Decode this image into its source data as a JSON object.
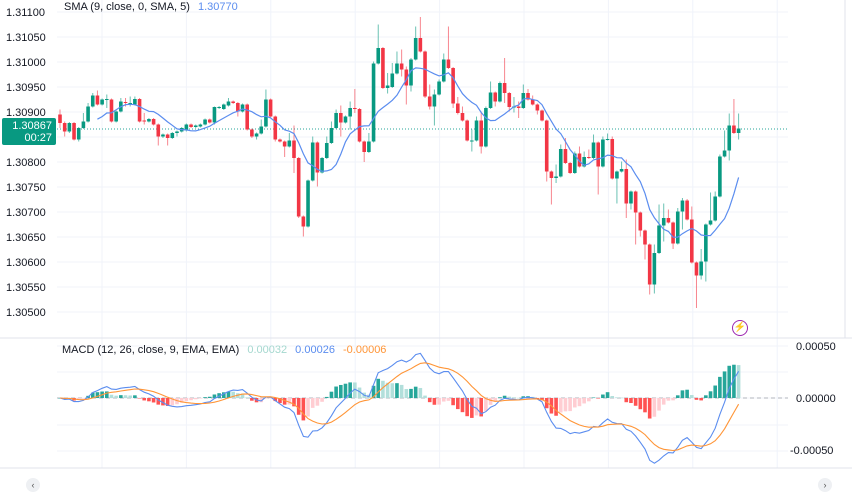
{
  "chart_data": [
    {
      "type": "candlestick",
      "price_axis": {
        "position": "left",
        "ticks": [
          "1.31100",
          "1.31050",
          "1.31000",
          "1.30950",
          "1.30900",
          "1.30800",
          "1.30750",
          "1.30700",
          "1.30650",
          "1.30600",
          "1.30550",
          "1.30500"
        ],
        "range": [
          1.305,
          1.311
        ]
      },
      "grid": true,
      "indicator": {
        "label": "SMA (9, close, 0, SMA, 5)",
        "value": "1.30770",
        "color": "#5b8def"
      },
      "last_price": {
        "value": "1.30867",
        "countdown": "00:27",
        "color": "#089981"
      },
      "colors": {
        "up": "#089981",
        "down": "#f23645"
      },
      "ohlc": [
        [
          1.30895,
          1.30905,
          1.30868,
          1.30878
        ],
        [
          1.30878,
          1.30881,
          1.30851,
          1.30861
        ],
        [
          1.30861,
          1.3088,
          1.30858,
          1.30878
        ],
        [
          1.30878,
          1.3088,
          1.30843,
          1.30845
        ],
        [
          1.30845,
          1.3087,
          1.30841,
          1.30868
        ],
        [
          1.30868,
          1.30898,
          1.30866,
          1.30881
        ],
        [
          1.30881,
          1.30918,
          1.30879,
          1.30911
        ],
        [
          1.30911,
          1.30938,
          1.30909,
          1.30933
        ],
        [
          1.30933,
          1.30943,
          1.30913,
          1.30915
        ],
        [
          1.30915,
          1.30927,
          1.30913,
          1.30925
        ],
        [
          1.30925,
          1.30935,
          1.30908,
          1.30926
        ],
        [
          1.30925,
          1.30927,
          1.30879,
          1.30881
        ],
        [
          1.30881,
          1.30903,
          1.30879,
          1.30901
        ],
        [
          1.30901,
          1.30928,
          1.30899,
          1.30921
        ],
        [
          1.3092,
          1.30928,
          1.30911,
          1.30918
        ],
        [
          1.30917,
          1.30931,
          1.30911,
          1.30918
        ],
        [
          1.30915,
          1.30931,
          1.30913,
          1.30926
        ],
        [
          1.30926,
          1.30928,
          1.30879,
          1.30881
        ],
        [
          1.30883,
          1.30898,
          1.30875,
          1.30881
        ],
        [
          1.30881,
          1.30888,
          1.30879,
          1.30886
        ],
        [
          1.30886,
          1.30888,
          1.30873,
          1.30875
        ],
        [
          1.30875,
          1.30877,
          1.30833,
          1.30851
        ],
        [
          1.30851,
          1.30857,
          1.30848,
          1.30855
        ],
        [
          1.30855,
          1.30857,
          1.30833,
          1.30848
        ],
        [
          1.30848,
          1.3086,
          1.30846,
          1.30858
        ],
        [
          1.30858,
          1.30863,
          1.30851,
          1.30861
        ],
        [
          1.30861,
          1.3087,
          1.30859,
          1.30868
        ],
        [
          1.30863,
          1.30877,
          1.30861,
          1.30875
        ],
        [
          1.30875,
          1.30877,
          1.30868,
          1.3087
        ],
        [
          1.3087,
          1.30875,
          1.30868,
          1.30873
        ],
        [
          1.30871,
          1.30877,
          1.30869,
          1.30875
        ],
        [
          1.30875,
          1.30887,
          1.30873,
          1.30885
        ],
        [
          1.30885,
          1.30887,
          1.30877,
          1.30879
        ],
        [
          1.30879,
          1.30911,
          1.30875,
          1.3091
        ],
        [
          1.30908,
          1.30912,
          1.30906,
          1.3091
        ],
        [
          1.30906,
          1.30917,
          1.30904,
          1.30915
        ],
        [
          1.30913,
          1.30928,
          1.30911,
          1.30921
        ],
        [
          1.30921,
          1.30923,
          1.30916,
          1.30918
        ],
        [
          1.30918,
          1.3092,
          1.30891,
          1.30901
        ],
        [
          1.30901,
          1.30917,
          1.30899,
          1.30915
        ],
        [
          1.30915,
          1.30917,
          1.30863,
          1.30865
        ],
        [
          1.30865,
          1.30867,
          1.30848,
          1.30851
        ],
        [
          1.30851,
          1.30859,
          1.30845,
          1.30857
        ],
        [
          1.30857,
          1.30885,
          1.30855,
          1.30871
        ],
        [
          1.30871,
          1.30945,
          1.30869,
          1.30925
        ],
        [
          1.30925,
          1.30927,
          1.30889,
          1.30891
        ],
        [
          1.30891,
          1.30893,
          1.30841,
          1.30845
        ],
        [
          1.30845,
          1.30847,
          1.30839,
          1.30841
        ],
        [
          1.30841,
          1.30843,
          1.3081,
          1.30831
        ],
        [
          1.30831,
          1.30858,
          1.30829,
          1.30843
        ],
        [
          1.30843,
          1.30873,
          1.30778,
          1.30808
        ],
        [
          1.30808,
          1.3081,
          1.30688,
          1.30691
        ],
        [
          1.30691,
          1.30693,
          1.30651,
          1.30671
        ],
        [
          1.30671,
          1.30765,
          1.30669,
          1.30763
        ],
        [
          1.30763,
          1.30851,
          1.30761,
          1.30839
        ],
        [
          1.30839,
          1.30841,
          1.30751,
          1.30779
        ],
        [
          1.30779,
          1.3081,
          1.30777,
          1.30808
        ],
        [
          1.30808,
          1.30851,
          1.30806,
          1.30838
        ],
        [
          1.30838,
          1.30881,
          1.30836,
          1.30868
        ],
        [
          1.30868,
          1.30905,
          1.30866,
          1.30898
        ],
        [
          1.30898,
          1.30913,
          1.30851,
          1.30879
        ],
        [
          1.30879,
          1.30893,
          1.30877,
          1.30891
        ],
        [
          1.30891,
          1.30921,
          1.30865,
          1.30908
        ],
        [
          1.30908,
          1.30946,
          1.30898,
          1.30906
        ],
        [
          1.30906,
          1.30908,
          1.30839,
          1.30841
        ],
        [
          1.30841,
          1.30843,
          1.308,
          1.3082
        ],
        [
          1.3082,
          1.30858,
          1.30818,
          1.30841
        ],
        [
          1.30841,
          1.31001,
          1.30839,
          1.30997
        ],
        [
          1.30997,
          1.31075,
          1.30995,
          1.31028
        ],
        [
          1.31028,
          1.3103,
          1.30946,
          1.30948
        ],
        [
          1.30948,
          1.30978,
          1.30937,
          1.30953
        ],
        [
          1.3095,
          1.30998,
          1.30948,
          1.30977
        ],
        [
          1.30977,
          1.31021,
          1.30975,
          1.30997
        ],
        [
          1.30997,
          1.31025,
          1.30971,
          1.30985
        ],
        [
          1.30985,
          1.30991,
          1.30915,
          1.30953
        ],
        [
          1.30953,
          1.31008,
          1.30941,
          1.31005
        ],
        [
          1.31005,
          1.31071,
          1.31003,
          1.31048
        ],
        [
          1.31048,
          1.3109,
          1.31019,
          1.31021
        ],
        [
          1.31021,
          1.31023,
          1.30928,
          1.30931
        ],
        [
          1.30931,
          1.30955,
          1.30905,
          1.30911
        ],
        [
          1.30911,
          1.30945,
          1.30873,
          1.30935
        ],
        [
          1.30935,
          1.30965,
          1.30933,
          1.30961
        ],
        [
          1.30961,
          1.31017,
          1.30959,
          1.31005
        ],
        [
          1.31005,
          1.31071,
          1.30986,
          1.30988
        ],
        [
          1.30988,
          1.3099,
          1.30908,
          1.30917
        ],
        [
          1.30917,
          1.3093,
          1.30895,
          1.30898
        ],
        [
          1.30898,
          1.30911,
          1.30881,
          1.30883
        ],
        [
          1.30883,
          1.30885,
          1.30841,
          1.30843
        ],
        [
          1.30841,
          1.30865,
          1.30821,
          1.30843
        ],
        [
          1.30843,
          1.30891,
          1.30841,
          1.30883
        ],
        [
          1.30883,
          1.30901,
          1.30817,
          1.30831
        ],
        [
          1.30831,
          1.30911,
          1.30829,
          1.30908
        ],
        [
          1.30908,
          1.30961,
          1.30906,
          1.30939
        ],
        [
          1.30939,
          1.30941,
          1.30911,
          1.30921
        ],
        [
          1.30921,
          1.30961,
          1.30919,
          1.30958
        ],
        [
          1.30958,
          1.31008,
          1.30918,
          1.30938
        ],
        [
          1.30938,
          1.3094,
          1.30901,
          1.3091
        ],
        [
          1.3091,
          1.3093,
          1.30899,
          1.30911
        ],
        [
          1.30911,
          1.30921,
          1.30888,
          1.30908
        ],
        [
          1.30908,
          1.30955,
          1.30906,
          1.30938
        ],
        [
          1.30938,
          1.30946,
          1.30923,
          1.30925
        ],
        [
          1.30925,
          1.30933,
          1.30913,
          1.30915
        ],
        [
          1.30915,
          1.30917,
          1.30895,
          1.30903
        ],
        [
          1.30903,
          1.30905,
          1.30881,
          1.30883
        ],
        [
          1.30883,
          1.30885,
          1.30761,
          1.30781
        ],
        [
          1.30781,
          1.30783,
          1.30715,
          1.30768
        ],
        [
          1.30768,
          1.30795,
          1.30758,
          1.30771
        ],
        [
          1.30771,
          1.30835,
          1.30769,
          1.30826
        ],
        [
          1.30826,
          1.30848,
          1.30796,
          1.30798
        ],
        [
          1.30798,
          1.308,
          1.30776,
          1.30778
        ],
        [
          1.30778,
          1.30821,
          1.30776,
          1.30817
        ],
        [
          1.30817,
          1.30831,
          1.30789,
          1.30791
        ],
        [
          1.30791,
          1.30821,
          1.30789,
          1.3081
        ],
        [
          1.3081,
          1.30825,
          1.30806,
          1.30808
        ],
        [
          1.30808,
          1.30855,
          1.30806,
          1.30839
        ],
        [
          1.30839,
          1.30841,
          1.30735,
          1.30791
        ],
        [
          1.30791,
          1.30851,
          1.30789,
          1.30845
        ],
        [
          1.30845,
          1.30857,
          1.30843,
          1.30846
        ],
        [
          1.30846,
          1.30851,
          1.30765,
          1.30767
        ],
        [
          1.30767,
          1.30783,
          1.30717,
          1.30781
        ],
        [
          1.30781,
          1.30801,
          1.30779,
          1.30786
        ],
        [
          1.30786,
          1.30805,
          1.30688,
          1.30717
        ],
        [
          1.30717,
          1.30743,
          1.30705,
          1.30741
        ],
        [
          1.30741,
          1.30743,
          1.30635,
          1.30699
        ],
        [
          1.30699,
          1.30701,
          1.30651,
          1.30663
        ],
        [
          1.30663,
          1.30665,
          1.30605,
          1.30635
        ],
        [
          1.30635,
          1.30637,
          1.30535,
          1.30555
        ],
        [
          1.30555,
          1.30635,
          1.30537,
          1.30618
        ],
        [
          1.30618,
          1.30715,
          1.30616,
          1.30673
        ],
        [
          1.30673,
          1.30717,
          1.30641,
          1.30688
        ],
        [
          1.30688,
          1.30705,
          1.30677,
          1.30679
        ],
        [
          1.30679,
          1.30681,
          1.30626,
          1.30637
        ],
        [
          1.30637,
          1.30708,
          1.30635,
          1.30701
        ],
        [
          1.30701,
          1.30728,
          1.30665,
          1.30723
        ],
        [
          1.30723,
          1.30726,
          1.30683,
          1.30685
        ],
        [
          1.30685,
          1.30711,
          1.30597,
          1.30599
        ],
        [
          1.30599,
          1.30601,
          1.30508,
          1.30573
        ],
        [
          1.30573,
          1.30626,
          1.30565,
          1.30601
        ],
        [
          1.30601,
          1.30677,
          1.30561,
          1.30675
        ],
        [
          1.30675,
          1.30739,
          1.30673,
          1.30683
        ],
        [
          1.30683,
          1.30741,
          1.30681,
          1.30731
        ],
        [
          1.30731,
          1.30815,
          1.30729,
          1.30811
        ],
        [
          1.30811,
          1.30863,
          1.30809,
          1.30823
        ],
        [
          1.30823,
          1.30897,
          1.30803,
          1.30873
        ],
        [
          1.30873,
          1.30926,
          1.30856,
          1.30858
        ],
        [
          1.30858,
          1.30897,
          1.30845,
          1.30867
        ]
      ]
    },
    {
      "type": "macd",
      "label": "MACD (12, 26, close, 9, EMA, EMA)",
      "values": {
        "histogram": "0.00032",
        "macd": "0.00026",
        "signal": "-0.00006"
      },
      "colors": {
        "histogram": "#a5d8cf",
        "macd": "#5b8def",
        "signal": "#ff9537",
        "hist_up_strong": "#26a69a",
        "hist_up_weak": "#b2dfdb",
        "hist_down_strong": "#ff5252",
        "hist_down_weak": "#ffcdd2"
      },
      "axis": {
        "position": "right",
        "ticks": [
          "0.00050",
          "0.00000",
          "-0.00050"
        ],
        "range": [
          -0.0006,
          0.0006
        ]
      }
    }
  ]
}
